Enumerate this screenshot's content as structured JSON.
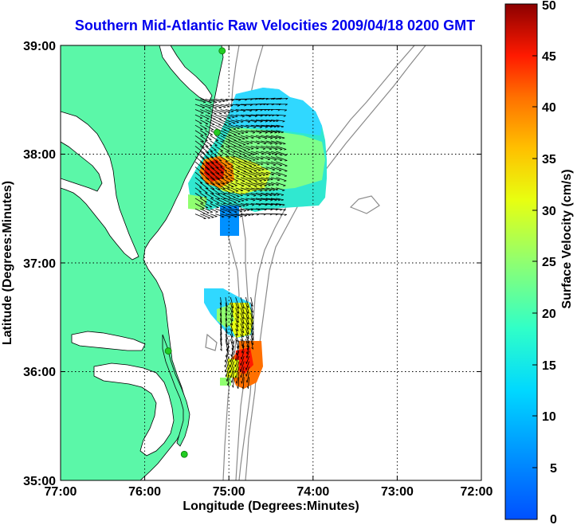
{
  "title": "Southern Mid-Atlantic Raw Velocities 2009/04/18 0200 GMT",
  "axes": {
    "xlabel": "Longitude (Degrees:Minutes)",
    "ylabel": "Latitude (Degrees:Minutes)",
    "xticks": [
      "77:00",
      "76:00",
      "75:00",
      "74:00",
      "73:00",
      "72:00"
    ],
    "yticks": [
      "39:00",
      "38:00",
      "37:00",
      "36:00",
      "35:00"
    ],
    "xlim": [
      -77,
      -72
    ],
    "ylim": [
      35,
      39
    ],
    "grid": "dotted"
  },
  "colorbar": {
    "label": "Surface Velocity (cm/s)",
    "ticks": [
      "50",
      "45",
      "40",
      "35",
      "30",
      "25",
      "20",
      "15",
      "10",
      "5",
      "0"
    ],
    "range": [
      0,
      50
    ],
    "colormap": "jet"
  },
  "colors": {
    "land": "#5bf7a8",
    "ocean": "#ffffff",
    "coast_line": "#000000",
    "bathymetry": "#8a8a8a",
    "station": "#22cc22",
    "title": "#0000ee"
  },
  "stations": [
    {
      "lon": -75.08,
      "lat": 38.95
    },
    {
      "lon": -75.14,
      "lat": 38.2
    },
    {
      "lon": -75.72,
      "lat": 36.19
    },
    {
      "lon": -75.53,
      "lat": 35.24
    }
  ],
  "chart_data": {
    "type": "vector-field",
    "title": "Southern Mid-Atlantic Raw Velocities 2009/04/18 0200 GMT",
    "xlabel": "Longitude (Degrees:Minutes)",
    "ylabel": "Latitude (Degrees:Minutes)",
    "colorbar_label": "Surface Velocity (cm/s)",
    "regions": [
      {
        "lon_range": [
          -75.4,
          -74.4
        ],
        "lat_range": [
          37.45,
          38.55
        ],
        "speed_range_cm_s": [
          5,
          45
        ]
      },
      {
        "lon_range": [
          -75.1,
          -74.7
        ],
        "lat_range": [
          36.3,
          36.7
        ],
        "speed_range_cm_s": [
          5,
          30
        ]
      },
      {
        "lon_range": [
          -75.0,
          -74.7
        ],
        "lat_range": [
          35.95,
          36.3
        ],
        "speed_range_cm_s": [
          15,
          40
        ]
      }
    ]
  }
}
